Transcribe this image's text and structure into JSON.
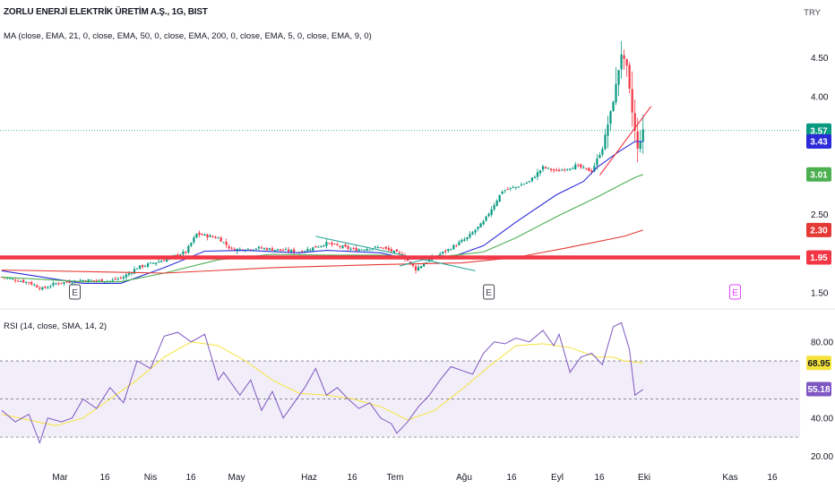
{
  "header": {
    "title": "ZORLU ENERJİ ELEKTRİK ÜRETİM A.Ş., 1G, BIST",
    "ma_legend": "MA (close, EMA, 21, 0, close, EMA, 50, 0, close, EMA, 200, 0, close, EMA, 5, 0, close, EMA, 9, 0)",
    "rsi_legend": "RSI (14, close, SMA, 14, 2)",
    "currency": "TRY"
  },
  "colors": {
    "up": "#089981",
    "down": "#f23645",
    "ema21": "#2b2bd9",
    "ema50": "#4caf50",
    "ema200": "#e53935",
    "support": "#f23645",
    "rsi": "#7e57c2",
    "rsi_ma": "#f5e33b",
    "rsi_band": "#ede7f6",
    "trend_teal": "#26a69a",
    "earnings_dark": "#434651",
    "earnings_future": "#e040fb"
  },
  "chart_data": [
    {
      "type": "candlestick",
      "name": "price",
      "x_ticks": [
        "Mar",
        "16",
        "Nis",
        "16",
        "May",
        "Haz",
        "16",
        "Tem",
        "Ağu",
        "16",
        "Eyl",
        "16",
        "Eki",
        "Kas",
        "16"
      ],
      "y_ticks": [
        1.5,
        2.0,
        2.5,
        3.0,
        3.5,
        4.0,
        4.5
      ],
      "y_tick_labels": [
        "1.50",
        "",
        "2.50",
        "",
        "",
        "4.00",
        "4.50"
      ],
      "ylim": [
        1.35,
        4.95
      ],
      "scale": "linear",
      "price_tags": [
        {
          "label": "3.57",
          "value": 3.57,
          "color": "#089981"
        },
        {
          "label": "3.43",
          "value": 3.43,
          "color": "#2b2bd9"
        },
        {
          "label": "3.01",
          "value": 3.01,
          "color": "#4caf50"
        },
        {
          "label": "2.30",
          "value": 2.3,
          "color": "#e53935"
        },
        {
          "label": "1.95",
          "value": 1.95,
          "color": "#f23645"
        }
      ],
      "dotted_line_value": 3.57,
      "support_line_value": 1.95,
      "earnings_markers": [
        {
          "label": "E",
          "at_bar": 27,
          "future": false
        },
        {
          "label": "E",
          "at_bar": 180,
          "future": false
        },
        {
          "label": "E",
          "at_bar": 271,
          "future": true
        }
      ],
      "trendlines": [
        {
          "color": "#26a69a",
          "from": {
            "bar": 116,
            "value": 2.22
          },
          "to": {
            "bar": 175,
            "value": 1.78
          }
        },
        {
          "color": "#26a69a",
          "from": {
            "bar": 147,
            "value": 1.84
          },
          "to": {
            "bar": 162,
            "value": 1.98
          }
        },
        {
          "color": "#f23645",
          "from": {
            "bar": 221,
            "value": 3.0
          },
          "to": {
            "bar": 240,
            "value": 3.88
          }
        }
      ],
      "ohlc_points": [
        [
          0,
          1.7
        ],
        [
          10,
          1.63
        ],
        [
          15,
          1.55
        ],
        [
          20,
          1.62
        ],
        [
          30,
          1.66
        ],
        [
          40,
          1.65
        ],
        [
          45,
          1.7
        ],
        [
          50,
          1.82
        ],
        [
          60,
          1.92
        ],
        [
          68,
          2.02
        ],
        [
          72,
          2.25
        ],
        [
          80,
          2.2
        ],
        [
          85,
          2.05
        ],
        [
          95,
          2.07
        ],
        [
          110,
          2.02
        ],
        [
          120,
          2.13
        ],
        [
          130,
          2.05
        ],
        [
          140,
          2.08
        ],
        [
          148,
          1.98
        ],
        [
          153,
          1.8
        ],
        [
          158,
          1.92
        ],
        [
          165,
          2.05
        ],
        [
          172,
          2.2
        ],
        [
          178,
          2.4
        ],
        [
          185,
          2.8
        ],
        [
          190,
          2.85
        ],
        [
          195,
          2.92
        ],
        [
          200,
          3.1
        ],
        [
          205,
          3.05
        ],
        [
          212,
          3.12
        ],
        [
          218,
          3.05
        ],
        [
          222,
          3.35
        ],
        [
          226,
          3.95
        ],
        [
          229,
          4.55
        ],
        [
          231,
          4.38
        ],
        [
          233,
          3.8
        ],
        [
          235,
          3.33
        ],
        [
          237,
          3.57
        ]
      ],
      "series": [
        {
          "name": "EMA 21",
          "points": [
            [
              0,
              1.78
            ],
            [
              30,
              1.62
            ],
            [
              44,
              1.62
            ],
            [
              60,
              1.82
            ],
            [
              75,
              2.03
            ],
            [
              90,
              2.04
            ],
            [
              110,
              2.01
            ],
            [
              120,
              2.04
            ],
            [
              140,
              2.01
            ],
            [
              150,
              1.93
            ],
            [
              165,
              1.94
            ],
            [
              178,
              2.1
            ],
            [
              190,
              2.4
            ],
            [
              205,
              2.75
            ],
            [
              215,
              2.92
            ],
            [
              220,
              3.1
            ],
            [
              228,
              3.3
            ],
            [
              234,
              3.43
            ],
            [
              237,
              3.43
            ]
          ]
        },
        {
          "name": "EMA 50",
          "points": [
            [
              0,
              1.7
            ],
            [
              30,
              1.64
            ],
            [
              44,
              1.64
            ],
            [
              60,
              1.75
            ],
            [
              80,
              1.92
            ],
            [
              100,
              1.99
            ],
            [
              120,
              1.98
            ],
            [
              140,
              1.98
            ],
            [
              150,
              1.96
            ],
            [
              165,
              1.97
            ],
            [
              178,
              2.02
            ],
            [
              190,
              2.2
            ],
            [
              205,
              2.47
            ],
            [
              220,
              2.72
            ],
            [
              230,
              2.9
            ],
            [
              234,
              2.97
            ],
            [
              237,
              3.01
            ]
          ]
        },
        {
          "name": "EMA 200",
          "points": [
            [
              0,
              1.79
            ],
            [
              60,
              1.75
            ],
            [
              100,
              1.82
            ],
            [
              140,
              1.86
            ],
            [
              170,
              1.88
            ],
            [
              190,
              1.95
            ],
            [
              210,
              2.08
            ],
            [
              230,
              2.22
            ],
            [
              237,
              2.3
            ]
          ]
        }
      ]
    },
    {
      "type": "line",
      "name": "RSI",
      "ylim": [
        15,
        94
      ],
      "y_ticks": [
        20,
        40,
        60,
        70,
        80
      ],
      "y_tick_labels": [
        "20.00",
        "40.00",
        "",
        "",
        "80.00"
      ],
      "bands": [
        30,
        50,
        70
      ],
      "band_fill": [
        30,
        70
      ],
      "tags": [
        {
          "label": "68.95",
          "value": 68.95,
          "color": "#f5e33b"
        },
        {
          "label": "55.18",
          "value": 55.18,
          "color": "#7e57c2"
        }
      ],
      "series": [
        {
          "name": "RSI",
          "points": [
            [
              0,
              44
            ],
            [
              5,
              38
            ],
            [
              10,
              42
            ],
            [
              14,
              27
            ],
            [
              17,
              40
            ],
            [
              22,
              38
            ],
            [
              26,
              40
            ],
            [
              30,
              50
            ],
            [
              35,
              45
            ],
            [
              40,
              56
            ],
            [
              45,
              48
            ],
            [
              50,
              70
            ],
            [
              55,
              66
            ],
            [
              60,
              83
            ],
            [
              65,
              85
            ],
            [
              70,
              80
            ],
            [
              75,
              84
            ],
            [
              80,
              60
            ],
            [
              82,
              64
            ],
            [
              88,
              52
            ],
            [
              92,
              60
            ],
            [
              96,
              44
            ],
            [
              100,
              54
            ],
            [
              104,
              40
            ],
            [
              108,
              48
            ],
            [
              112,
              56
            ],
            [
              116,
              66
            ],
            [
              120,
              52
            ],
            [
              124,
              56
            ],
            [
              128,
              50
            ],
            [
              132,
              45
            ],
            [
              136,
              48
            ],
            [
              140,
              40
            ],
            [
              144,
              37
            ],
            [
              146,
              32
            ],
            [
              150,
              38
            ],
            [
              154,
              46
            ],
            [
              158,
              52
            ],
            [
              162,
              60
            ],
            [
              166,
              67
            ],
            [
              170,
              65
            ],
            [
              174,
              63
            ],
            [
              178,
              74
            ],
            [
              182,
              80
            ],
            [
              186,
              79
            ],
            [
              190,
              82
            ],
            [
              195,
              80
            ],
            [
              200,
              86
            ],
            [
              204,
              78
            ],
            [
              206,
              84
            ],
            [
              210,
              64
            ],
            [
              214,
              72
            ],
            [
              218,
              74
            ],
            [
              222,
              68
            ],
            [
              226,
              88
            ],
            [
              229,
              90
            ],
            [
              232,
              76
            ],
            [
              234,
              52
            ],
            [
              237,
              55
            ]
          ]
        },
        {
          "name": "RSI MA",
          "points": [
            [
              0,
              42
            ],
            [
              10,
              39
            ],
            [
              20,
              36
            ],
            [
              30,
              40
            ],
            [
              40,
              50
            ],
            [
              50,
              60
            ],
            [
              60,
              72
            ],
            [
              70,
              80
            ],
            [
              80,
              78
            ],
            [
              90,
              70
            ],
            [
              100,
              60
            ],
            [
              110,
              53
            ],
            [
              120,
              52
            ],
            [
              130,
              50
            ],
            [
              140,
              46
            ],
            [
              150,
              39
            ],
            [
              160,
              44
            ],
            [
              170,
              55
            ],
            [
              180,
              67
            ],
            [
              190,
              78
            ],
            [
              200,
              79
            ],
            [
              210,
              77
            ],
            [
              220,
              72
            ],
            [
              226,
              72
            ],
            [
              230,
              70
            ],
            [
              237,
              69
            ]
          ]
        }
      ]
    }
  ]
}
